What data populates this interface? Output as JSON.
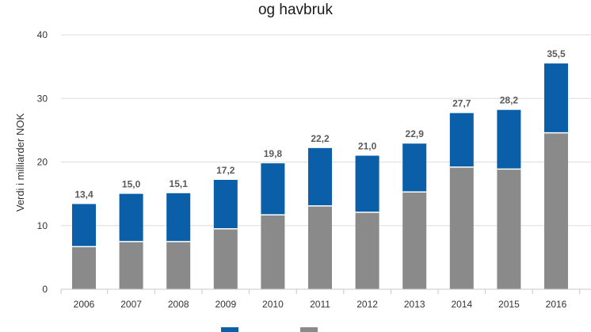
{
  "chart_data": {
    "type": "bar",
    "stacked": true,
    "title": "og havbruk",
    "ylabel": "Verdi i milliarder NOK",
    "xlabel": "",
    "ylim": [
      0,
      40
    ],
    "yticks": [
      0,
      10,
      20,
      30,
      40
    ],
    "grid": true,
    "categories": [
      "2006",
      "2007",
      "2008",
      "2009",
      "2010",
      "2011",
      "2012",
      "2013",
      "2014",
      "2015",
      "2016"
    ],
    "series": [
      {
        "values": [
          6.7,
          7.5,
          7.5,
          9.5,
          11.7,
          13.1,
          12.1,
          15.3,
          19.2,
          18.9,
          24.6
        ],
        "color": "#8a8a8a"
      },
      {
        "values": [
          6.7,
          7.5,
          7.6,
          7.7,
          8.1,
          9.1,
          8.9,
          7.6,
          8.5,
          9.3,
          10.9
        ],
        "color": "#0a5fa8"
      }
    ],
    "totals": [
      "13,4",
      "15,0",
      "15,1",
      "17,2",
      "19,8",
      "22,2",
      "21,0",
      "22,9",
      "27,7",
      "28,2",
      "35,5"
    ],
    "legend": {
      "placement": "bottom"
    }
  }
}
